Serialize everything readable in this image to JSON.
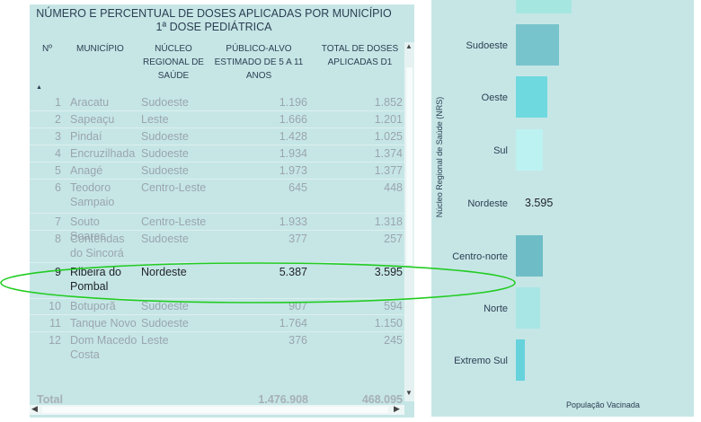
{
  "table": {
    "title": "NÚMERO E PERCENTUAL DE DOSES APLICADAS POR MUNICÍPIO 1ª DOSE PEDIÁTRICA",
    "headers": {
      "num": "Nº",
      "municipio": "MUNICÍPIO",
      "nucleo": "NÚCLEO REGIONAL DE SAÚDE",
      "publico": "PÚBLICO-ALVO ESTIMADO DE 5 A 11 ANOS",
      "total": "TOTAL DE DOSES APLICADAS D1"
    },
    "rows": [
      {
        "num": "1",
        "municipio": "Aracatu",
        "nucleo": "Sudoeste",
        "publico": "1.196",
        "total": "1.852"
      },
      {
        "num": "2",
        "municipio": "Sapeaçu",
        "nucleo": "Leste",
        "publico": "1.666",
        "total": "1.201"
      },
      {
        "num": "3",
        "municipio": "Pindaí",
        "nucleo": "Sudoeste",
        "publico": "1.428",
        "total": "1.025"
      },
      {
        "num": "4",
        "municipio": "Encruzilhada",
        "nucleo": "Sudoeste",
        "publico": "1.934",
        "total": "1.374"
      },
      {
        "num": "5",
        "municipio": "Anagé",
        "nucleo": "Sudoeste",
        "publico": "1.973",
        "total": "1.377"
      },
      {
        "num": "6",
        "municipio": "Teodoro Sampaio",
        "nucleo": "Centro-Leste",
        "publico": "645",
        "total": "448"
      },
      {
        "num": "7",
        "municipio": "Souto Soares",
        "nucleo": "Centro-Leste",
        "publico": "1.933",
        "total": "1.318"
      },
      {
        "num": "8",
        "municipio": "Contendas do Sincorá",
        "nucleo": "Sudoeste",
        "publico": "377",
        "total": "257"
      },
      {
        "num": "9",
        "municipio": "Ribeira do Pombal",
        "nucleo": "Nordeste",
        "publico": "5.387",
        "total": "3.595"
      },
      {
        "num": "10",
        "municipio": "Botuporã",
        "nucleo": "Sudoeste",
        "publico": "907",
        "total": "594"
      },
      {
        "num": "11",
        "municipio": "Tanque Novo",
        "nucleo": "Sudoeste",
        "publico": "1.764",
        "total": "1.150"
      },
      {
        "num": "12",
        "municipio": "Dom Macedo Costa",
        "nucleo": "Leste",
        "publico": "376",
        "total": "245"
      }
    ],
    "total_label": "Total",
    "total_publico": "1.476.908",
    "total_aplicadas": "468.095"
  },
  "chart": {
    "y_axis_title": "Núcleo Regional de Saúde (NRS)",
    "x_axis_title": "População Vacinada",
    "colors": {
      "background": "#c6e6e6",
      "highlight": "#22cc22"
    }
  },
  "chart_data": {
    "type": "bar",
    "orientation": "horizontal",
    "categories": [
      "Sudoeste",
      "Oeste",
      "Sul",
      "Nordeste",
      "Centro-norte",
      "Norte",
      "Extremo Sul"
    ],
    "values": [
      null,
      null,
      null,
      3595,
      null,
      null,
      null
    ],
    "bar_colors": [
      "#78c4cc",
      "#6fd9e0",
      "#bdf2f2",
      "#c6e6e6",
      "#6ebdc6",
      "#a8e6e6",
      "#66d2dc"
    ],
    "data_labels": {
      "Nordeste": "3.595"
    },
    "x_axis_title": "População Vacinada",
    "y_axis_title": "Núcleo Regional de Saúde (NRS)"
  }
}
